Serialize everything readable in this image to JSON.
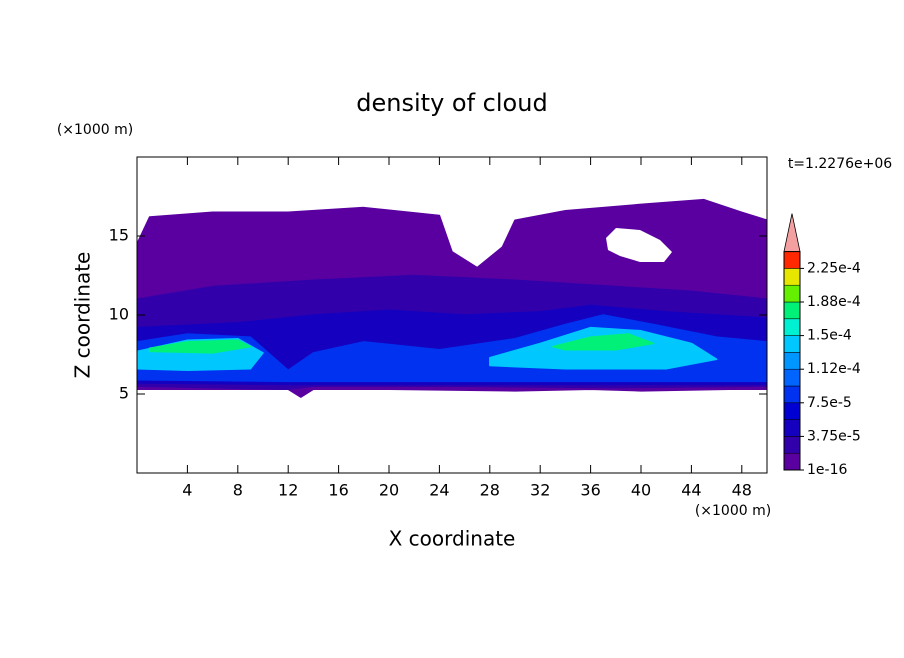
{
  "chart_data": {
    "type": "contour",
    "title": "density of cloud",
    "xlabel": "X coordinate",
    "ylabel": "Z coordinate",
    "x_unit": "(×1000 m)",
    "y_unit": "(×1000 m)",
    "time_label": "t=1.2276e+06",
    "xlim": [
      0,
      50
    ],
    "ylim": [
      0,
      20
    ],
    "xticks": [
      4,
      8,
      12,
      16,
      20,
      24,
      28,
      32,
      36,
      40,
      44,
      48
    ],
    "yticks": [
      5,
      10,
      15
    ],
    "levels": [
      1e-16,
      1.875e-05,
      3.75e-05,
      5.625e-05,
      7.5e-05,
      9.375e-05,
      0.0001125,
      0.00013125,
      0.00015,
      0.00016875,
      0.0001875,
      0.00020625,
      0.000225,
      0.00024375
    ],
    "colors": [
      "#5a00a0",
      "#3200aa",
      "#1400be",
      "#0000d2",
      "#0032f0",
      "#0064ff",
      "#0096ff",
      "#00c8ff",
      "#00f0d2",
      "#00f078",
      "#64f000",
      "#e6e600",
      "#ffa000"
    ],
    "extend_color": "#f4a0a0",
    "colorbar_ticks": [
      {
        "value": 1e-16,
        "label": "1e-16"
      },
      {
        "value": 3.75e-05,
        "label": "3.75e-5"
      },
      {
        "value": 7.5e-05,
        "label": "7.5e-5"
      },
      {
        "value": 0.0001125,
        "label": "1.12e-4"
      },
      {
        "value": 0.00015,
        "label": "1.5e-4"
      },
      {
        "value": 0.0001875,
        "label": "1.88e-4"
      },
      {
        "value": 0.000225,
        "label": "2.25e-4"
      }
    ],
    "regions": [
      {
        "value": 1e-16,
        "x": [
          0,
          1,
          6,
          12,
          18,
          24,
          25,
          27,
          29,
          30,
          34,
          40,
          45,
          48,
          50,
          50,
          47,
          40,
          36,
          30,
          20,
          14,
          13,
          12,
          4,
          0
        ],
        "z": [
          14.5,
          16.2,
          16.5,
          16.5,
          16.8,
          16.3,
          14,
          13,
          14.3,
          16,
          16.6,
          17,
          17.3,
          16.5,
          16,
          5.3,
          5.3,
          5.2,
          5.3,
          5.2,
          5.3,
          5.3,
          4.8,
          5.3,
          5.3,
          5.3
        ]
      },
      {
        "value": 1.875e-05,
        "x": [
          0,
          6,
          14,
          22,
          30,
          38,
          44,
          50,
          50,
          38,
          24,
          14,
          12,
          0
        ],
        "z": [
          11,
          11.8,
          12.2,
          12.5,
          12.2,
          11.8,
          11.5,
          11,
          5.5,
          5.4,
          5.5,
          5.5,
          5.3,
          5.5
        ]
      },
      {
        "value": 3.75e-05,
        "x": [
          0,
          8,
          14,
          20,
          26,
          32,
          36,
          42,
          50,
          50,
          30,
          18,
          12,
          0
        ],
        "z": [
          9.2,
          9.5,
          10,
          10.3,
          10,
          10.2,
          10.6,
          10.2,
          9.8,
          5.6,
          5.6,
          5.6,
          5.6,
          5.7
        ]
      },
      {
        "value": 7.5e-05,
        "x": [
          0,
          4,
          9,
          12,
          14,
          18,
          24,
          30,
          34,
          37,
          41,
          46,
          50,
          50,
          30,
          18,
          12,
          0
        ],
        "z": [
          8.3,
          8.8,
          8.6,
          6.5,
          7.6,
          8.3,
          7.8,
          8.5,
          9.4,
          10,
          9.4,
          8.6,
          8.3,
          5.8,
          5.8,
          5.8,
          5.8,
          5.9
        ]
      },
      {
        "value": 0.00013125,
        "x": [
          0,
          4,
          8,
          10,
          9,
          4,
          0
        ],
        "z": [
          7.7,
          8.4,
          8.5,
          7.6,
          6.6,
          6.5,
          6.6
        ]
      },
      {
        "value": 0.00013125,
        "x": [
          28,
          32,
          36,
          40,
          44,
          46,
          42,
          34,
          28
        ],
        "z": [
          7.3,
          8.2,
          9.2,
          9,
          8.2,
          7.2,
          6.6,
          6.6,
          6.8
        ]
      },
      {
        "value": 0.00016875,
        "x": [
          1,
          4,
          8,
          9,
          6,
          1
        ],
        "z": [
          7.9,
          8.3,
          8.4,
          8,
          7.6,
          7.7
        ]
      },
      {
        "value": 0.00016875,
        "x": [
          33,
          36,
          39,
          41,
          38,
          34
        ],
        "z": [
          8,
          8.6,
          8.8,
          8.2,
          7.8,
          7.8
        ]
      }
    ]
  }
}
